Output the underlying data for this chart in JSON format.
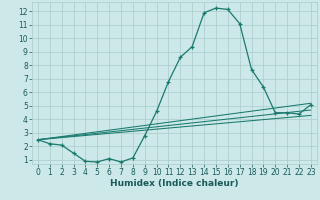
{
  "xlabel": "Humidex (Indice chaleur)",
  "bg_color": "#cce8e8",
  "grid_color": "#aacccc",
  "line_color": "#1a7a6e",
  "xlim": [
    -0.5,
    23.5
  ],
  "ylim": [
    0.7,
    12.7
  ],
  "xticks": [
    0,
    1,
    2,
    3,
    4,
    5,
    6,
    7,
    8,
    9,
    10,
    11,
    12,
    13,
    14,
    15,
    16,
    17,
    18,
    19,
    20,
    21,
    22,
    23
  ],
  "yticks": [
    1,
    2,
    3,
    4,
    5,
    6,
    7,
    8,
    9,
    10,
    11,
    12
  ],
  "curve_x": [
    0,
    1,
    2,
    3,
    4,
    5,
    6,
    7,
    8,
    9,
    10,
    11,
    12,
    13,
    14,
    15,
    16,
    17,
    18,
    19,
    20,
    21,
    22,
    23
  ],
  "curve_y": [
    2.5,
    2.2,
    2.1,
    1.5,
    0.9,
    0.85,
    1.1,
    0.85,
    1.15,
    2.8,
    4.6,
    6.8,
    8.6,
    9.4,
    11.9,
    12.25,
    12.15,
    11.1,
    7.7,
    6.4,
    4.5,
    4.5,
    4.4,
    5.1
  ],
  "line1_x": [
    0,
    23
  ],
  "line1_y": [
    2.5,
    5.2
  ],
  "line2_x": [
    0,
    23
  ],
  "line2_y": [
    2.5,
    4.7
  ],
  "line3_x": [
    0,
    23
  ],
  "line3_y": [
    2.5,
    4.3
  ],
  "ticklabel_fontsize": 5.5,
  "xlabel_fontsize": 6.5
}
